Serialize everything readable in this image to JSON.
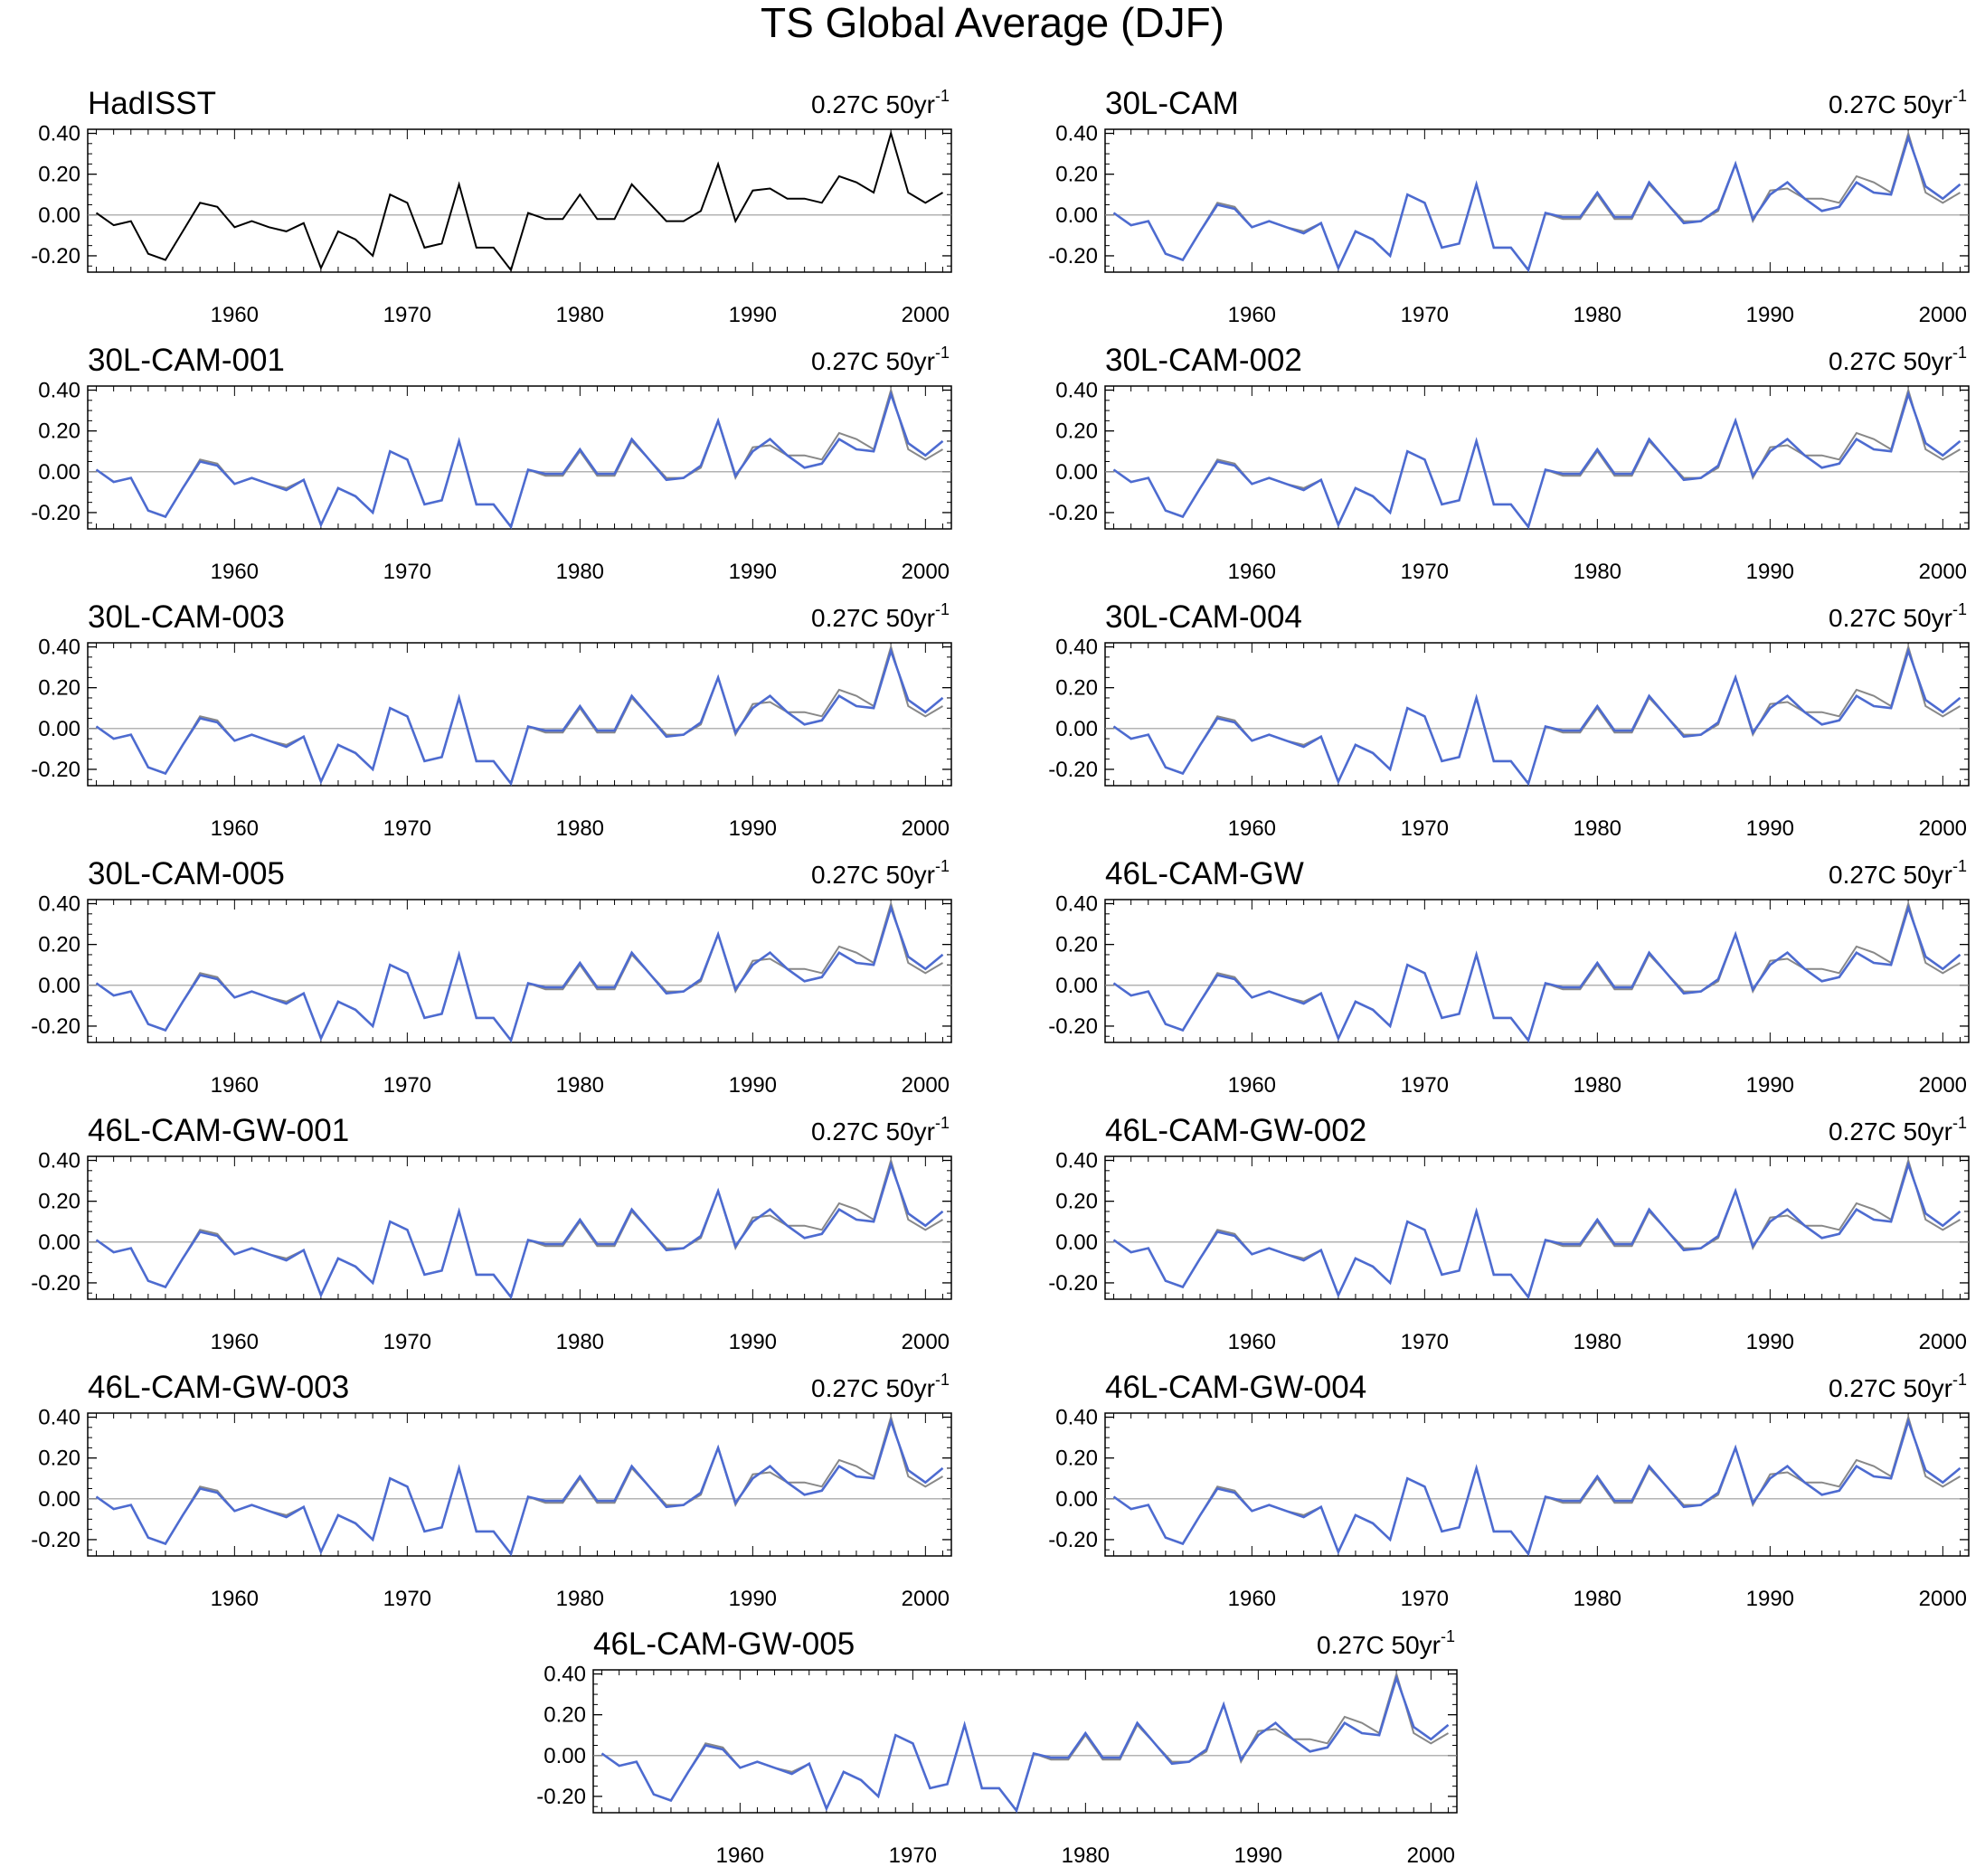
{
  "title": "TS Global Average (DJF)",
  "chart_data": {
    "type": "line",
    "x_ticks": [
      1960,
      1970,
      1980,
      1990,
      2000
    ],
    "y_ticks": [
      "0.40",
      "0.20",
      "0.00",
      "-0.20"
    ],
    "y_tick_values": [
      0.4,
      0.2,
      0.0,
      -0.2
    ],
    "xlim": [
      1951.5,
      2001.5
    ],
    "ylim": [
      -0.28,
      0.42
    ],
    "zero_line": true,
    "x": [
      1952,
      1953,
      1954,
      1955,
      1956,
      1957,
      1958,
      1959,
      1960,
      1961,
      1962,
      1963,
      1964,
      1965,
      1966,
      1967,
      1968,
      1969,
      1970,
      1971,
      1972,
      1973,
      1974,
      1975,
      1976,
      1977,
      1978,
      1979,
      1980,
      1981,
      1982,
      1983,
      1984,
      1985,
      1986,
      1987,
      1988,
      1989,
      1990,
      1991,
      1992,
      1993,
      1994,
      1995,
      1996,
      1997,
      1998,
      1999,
      2000,
      2001
    ],
    "observed": [
      0.01,
      -0.05,
      -0.03,
      -0.19,
      -0.22,
      -0.08,
      0.06,
      0.04,
      -0.06,
      -0.03,
      -0.06,
      -0.08,
      -0.04,
      -0.26,
      -0.08,
      -0.12,
      -0.2,
      0.1,
      0.06,
      -0.16,
      -0.14,
      0.15,
      -0.16,
      -0.16,
      -0.27,
      0.01,
      -0.02,
      -0.02,
      0.1,
      -0.02,
      -0.02,
      0.15,
      0.06,
      -0.03,
      -0.03,
      0.02,
      0.25,
      -0.03,
      0.12,
      0.13,
      0.08,
      0.08,
      0.06,
      0.19,
      0.16,
      0.11,
      0.4,
      0.11,
      0.06,
      0.11
    ],
    "model": [
      0.01,
      -0.05,
      -0.03,
      -0.19,
      -0.22,
      -0.08,
      0.05,
      0.03,
      -0.06,
      -0.03,
      -0.06,
      -0.09,
      -0.04,
      -0.26,
      -0.08,
      -0.12,
      -0.2,
      0.1,
      0.06,
      -0.16,
      -0.14,
      0.15,
      -0.16,
      -0.16,
      -0.27,
      0.01,
      -0.01,
      -0.01,
      0.11,
      -0.01,
      -0.01,
      0.16,
      0.06,
      -0.04,
      -0.03,
      0.03,
      0.25,
      -0.02,
      0.1,
      0.16,
      0.08,
      0.02,
      0.04,
      0.16,
      0.11,
      0.1,
      0.38,
      0.14,
      0.08,
      0.15
    ],
    "panels": [
      {
        "title": "HadISST",
        "trend": "0.27C 50yr",
        "trend_sup": "-1",
        "colors": [
          "#000000"
        ]
      },
      {
        "title": "30L-CAM",
        "trend": "0.27C 50yr",
        "trend_sup": "-1",
        "colors": [
          "#888888",
          "#4d6bd0"
        ]
      },
      {
        "title": "30L-CAM-001",
        "trend": "0.27C 50yr",
        "trend_sup": "-1",
        "colors": [
          "#888888",
          "#4d6bd0"
        ]
      },
      {
        "title": "30L-CAM-002",
        "trend": "0.27C 50yr",
        "trend_sup": "-1",
        "colors": [
          "#888888",
          "#4d6bd0"
        ]
      },
      {
        "title": "30L-CAM-003",
        "trend": "0.27C 50yr",
        "trend_sup": "-1",
        "colors": [
          "#888888",
          "#4d6bd0"
        ]
      },
      {
        "title": "30L-CAM-004",
        "trend": "0.27C 50yr",
        "trend_sup": "-1",
        "colors": [
          "#888888",
          "#4d6bd0"
        ]
      },
      {
        "title": "30L-CAM-005",
        "trend": "0.27C 50yr",
        "trend_sup": "-1",
        "colors": [
          "#888888",
          "#4d6bd0"
        ]
      },
      {
        "title": "46L-CAM-GW",
        "trend": "0.27C 50yr",
        "trend_sup": "-1",
        "colors": [
          "#888888",
          "#4d6bd0"
        ]
      },
      {
        "title": "46L-CAM-GW-001",
        "trend": "0.27C 50yr",
        "trend_sup": "-1",
        "colors": [
          "#888888",
          "#4d6bd0"
        ]
      },
      {
        "title": "46L-CAM-GW-002",
        "trend": "0.27C 50yr",
        "trend_sup": "-1",
        "colors": [
          "#888888",
          "#4d6bd0"
        ]
      },
      {
        "title": "46L-CAM-GW-003",
        "trend": "0.27C 50yr",
        "trend_sup": "-1",
        "colors": [
          "#888888",
          "#4d6bd0"
        ]
      },
      {
        "title": "46L-CAM-GW-004",
        "trend": "0.27C 50yr",
        "trend_sup": "-1",
        "colors": [
          "#888888",
          "#4d6bd0"
        ]
      },
      {
        "title": "46L-CAM-GW-005",
        "trend": "0.27C 50yr",
        "trend_sup": "-1",
        "colors": [
          "#888888",
          "#4d6bd0"
        ]
      }
    ]
  }
}
